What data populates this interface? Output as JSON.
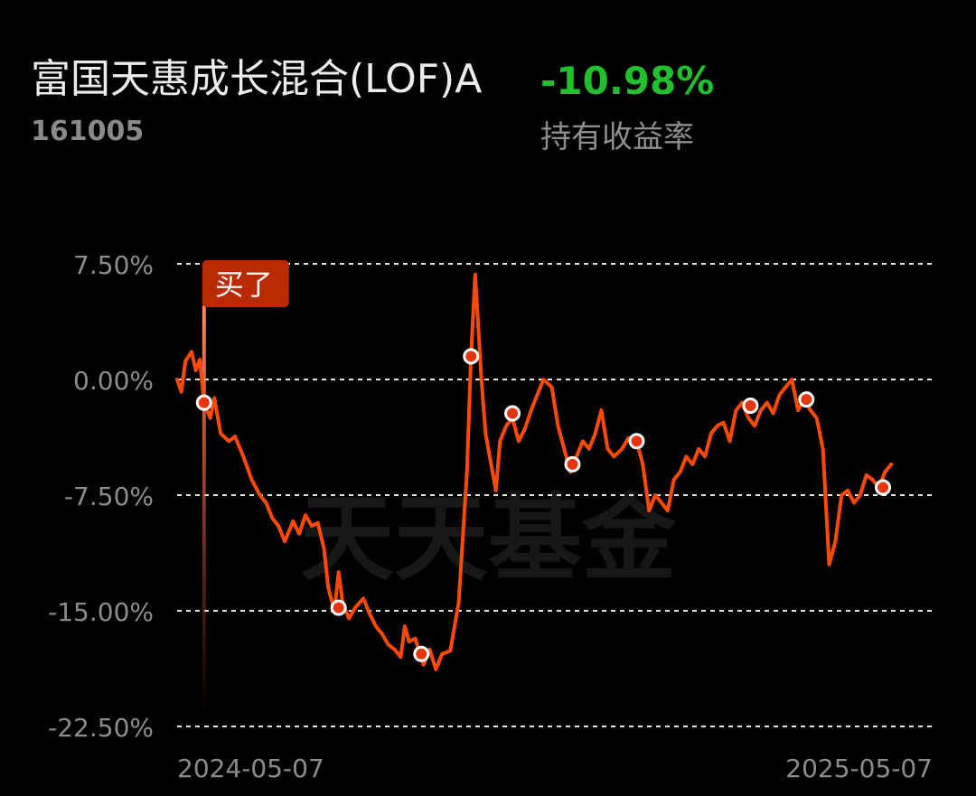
{
  "header": {
    "fund_name": "富国天惠成长混合(LOF)A",
    "fund_code": "161005",
    "return_value": "-10.98%",
    "return_label": "持有收益率"
  },
  "watermark": "天天基金",
  "colors": {
    "line": "#ff4a00",
    "positive_return": "#1fbf2e",
    "buy_tag": "#b92a00",
    "grid": "#ffffff",
    "axis_text": "#8c8c8c"
  },
  "chart_data": {
    "type": "line",
    "title": "",
    "xlabel": "",
    "ylabel": "",
    "y_unit": "%",
    "ylim": [
      -22.5,
      7.5
    ],
    "y_ticks": [
      7.5,
      0,
      -7.5,
      -15,
      -22.5
    ],
    "y_tick_labels": [
      "7.50%",
      "0.00%",
      "-7.50%",
      "-15.00%",
      "-22.50%"
    ],
    "grid": "dashed horizontal",
    "x_range": [
      "2024-05-07",
      "2025-05-07"
    ],
    "x_tick_labels": [
      "2024-05-07",
      "2025-05-07"
    ],
    "buy_marker": {
      "date": "2024-05-20",
      "label": "买了"
    },
    "series": [
      {
        "points": [
          [
            "2024-05-07",
            0.0
          ],
          [
            "2024-05-09",
            -0.8
          ],
          [
            "2024-05-11",
            1.2
          ],
          [
            "2024-05-14",
            1.8
          ],
          [
            "2024-05-16",
            0.6
          ],
          [
            "2024-05-18",
            1.3
          ],
          [
            "2024-05-20",
            -1.5
          ],
          [
            "2024-05-23",
            -2.5
          ],
          [
            "2024-05-25",
            -1.2
          ],
          [
            "2024-05-28",
            -3.5
          ],
          [
            "2024-06-01",
            -4.0
          ],
          [
            "2024-06-04",
            -3.7
          ],
          [
            "2024-06-08",
            -5.0
          ],
          [
            "2024-06-12",
            -6.5
          ],
          [
            "2024-06-16",
            -7.5
          ],
          [
            "2024-06-19",
            -8.0
          ],
          [
            "2024-06-22",
            -9.0
          ],
          [
            "2024-06-25",
            -9.5
          ],
          [
            "2024-06-28",
            -10.5
          ],
          [
            "2024-07-02",
            -9.2
          ],
          [
            "2024-07-05",
            -10.0
          ],
          [
            "2024-07-08",
            -8.8
          ],
          [
            "2024-07-11",
            -9.5
          ],
          [
            "2024-07-14",
            -9.3
          ],
          [
            "2024-07-17",
            -11.0
          ],
          [
            "2024-07-19",
            -13.5
          ],
          [
            "2024-07-22",
            -15.0
          ],
          [
            "2024-07-24",
            -12.5
          ],
          [
            "2024-07-26",
            -14.5
          ],
          [
            "2024-07-29",
            -15.5
          ],
          [
            "2024-08-01",
            -14.8
          ],
          [
            "2024-08-05",
            -14.2
          ],
          [
            "2024-08-08",
            -15.2
          ],
          [
            "2024-08-11",
            -16.0
          ],
          [
            "2024-08-14",
            -16.5
          ],
          [
            "2024-08-17",
            -17.2
          ],
          [
            "2024-08-20",
            -17.5
          ],
          [
            "2024-08-23",
            -18.0
          ],
          [
            "2024-08-25",
            -16.0
          ],
          [
            "2024-08-27",
            -17.0
          ],
          [
            "2024-08-30",
            -16.8
          ],
          [
            "2024-09-03",
            -18.5
          ],
          [
            "2024-09-06",
            -17.5
          ],
          [
            "2024-09-09",
            -18.8
          ],
          [
            "2024-09-12",
            -17.8
          ],
          [
            "2024-09-16",
            -17.6
          ],
          [
            "2024-09-20",
            -14.5
          ],
          [
            "2024-09-24",
            -6.0
          ],
          [
            "2024-09-26",
            1.5
          ],
          [
            "2024-09-28",
            6.8
          ],
          [
            "2024-10-01",
            0.0
          ],
          [
            "2024-10-03",
            -3.5
          ],
          [
            "2024-10-05",
            -5.0
          ],
          [
            "2024-10-08",
            -7.2
          ],
          [
            "2024-10-10",
            -4.0
          ],
          [
            "2024-10-13",
            -3.0
          ],
          [
            "2024-10-16",
            -2.5
          ],
          [
            "2024-10-19",
            -4.0
          ],
          [
            "2024-10-22",
            -3.2
          ],
          [
            "2024-10-25",
            -2.0
          ],
          [
            "2024-10-28",
            -1.0
          ],
          [
            "2024-10-31",
            0.0
          ],
          [
            "2024-11-04",
            -0.5
          ],
          [
            "2024-11-07",
            -3.0
          ],
          [
            "2024-11-10",
            -4.5
          ],
          [
            "2024-11-13",
            -6.0
          ],
          [
            "2024-11-16",
            -5.0
          ],
          [
            "2024-11-19",
            -4.0
          ],
          [
            "2024-11-22",
            -4.5
          ],
          [
            "2024-11-25",
            -3.5
          ],
          [
            "2024-11-28",
            -2.0
          ],
          [
            "2024-12-01",
            -4.5
          ],
          [
            "2024-12-04",
            -5.0
          ],
          [
            "2024-12-08",
            -4.5
          ],
          [
            "2024-12-11",
            -3.8
          ],
          [
            "2024-12-15",
            -4.0
          ],
          [
            "2024-12-18",
            -5.5
          ],
          [
            "2024-12-21",
            -8.5
          ],
          [
            "2024-12-24",
            -7.5
          ],
          [
            "2024-12-27",
            -8.0
          ],
          [
            "2024-12-30",
            -8.5
          ],
          [
            "2025-01-02",
            -6.5
          ],
          [
            "2025-01-05",
            -6.0
          ],
          [
            "2025-01-08",
            -5.0
          ],
          [
            "2025-01-11",
            -5.5
          ],
          [
            "2025-01-14",
            -4.5
          ],
          [
            "2025-01-17",
            -5.0
          ],
          [
            "2025-01-20",
            -3.5
          ],
          [
            "2025-01-23",
            -3.0
          ],
          [
            "2025-01-26",
            -2.8
          ],
          [
            "2025-01-29",
            -4.0
          ],
          [
            "2025-02-01",
            -2.0
          ],
          [
            "2025-02-04",
            -1.5
          ],
          [
            "2025-02-07",
            -2.5
          ],
          [
            "2025-02-10",
            -3.0
          ],
          [
            "2025-02-13",
            -2.0
          ],
          [
            "2025-02-16",
            -1.5
          ],
          [
            "2025-02-19",
            -2.2
          ],
          [
            "2025-02-22",
            -1.0
          ],
          [
            "2025-02-25",
            -0.5
          ],
          [
            "2025-02-28",
            0.0
          ],
          [
            "2025-03-03",
            -2.0
          ],
          [
            "2025-03-06",
            -1.3
          ],
          [
            "2025-03-09",
            -2.0
          ],
          [
            "2025-03-12",
            -2.5
          ],
          [
            "2025-03-15",
            -4.5
          ],
          [
            "2025-03-18",
            -12.0
          ],
          [
            "2025-03-21",
            -10.5
          ],
          [
            "2025-03-24",
            -7.5
          ],
          [
            "2025-03-27",
            -7.2
          ],
          [
            "2025-03-30",
            -8.0
          ],
          [
            "2025-04-02",
            -7.5
          ],
          [
            "2025-04-05",
            -6.2
          ],
          [
            "2025-04-08",
            -6.5
          ],
          [
            "2025-04-11",
            -7.0
          ],
          [
            "2025-04-14",
            -6.0
          ],
          [
            "2025-04-17",
            -5.5
          ]
        ]
      }
    ],
    "markers": [
      {
        "date": "2024-05-20",
        "value": -1.5
      },
      {
        "date": "2024-07-24",
        "value": -14.8
      },
      {
        "date": "2024-09-02",
        "value": -17.8
      },
      {
        "date": "2024-09-26",
        "value": 1.5
      },
      {
        "date": "2024-10-16",
        "value": -2.2
      },
      {
        "date": "2024-11-14",
        "value": -5.5
      },
      {
        "date": "2024-12-15",
        "value": -4.0
      },
      {
        "date": "2025-02-08",
        "value": -1.7
      },
      {
        "date": "2025-03-07",
        "value": -1.3
      },
      {
        "date": "2025-04-13",
        "value": -7.0
      }
    ]
  }
}
